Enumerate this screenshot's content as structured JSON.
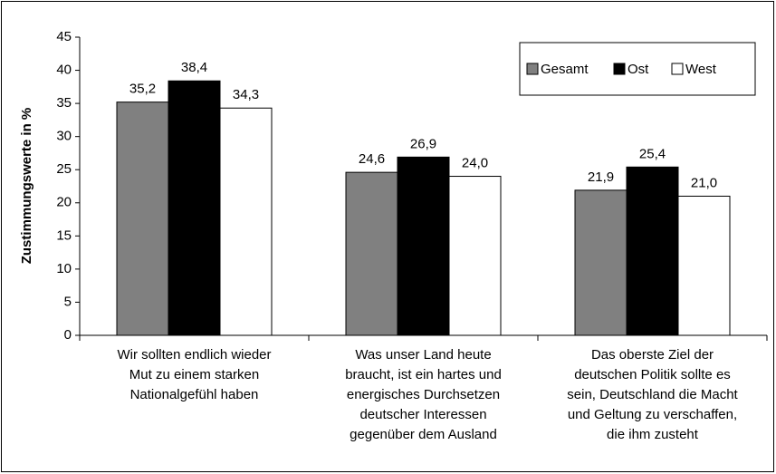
{
  "chart_data": {
    "type": "bar",
    "y_label": "Zustimmungswerte in %",
    "categories": [
      "Wir sollten endlich wieder\nMut zu einem starken\nNationalgefühl haben",
      "Was unser Land heute\nbraucht, ist ein hartes und\nenergisches Durchsetzen\ndeutscher Interessen\ngegenüber dem Ausland",
      "Das oberste Ziel der\ndeutschen Politik sollte es\nsein, Deutschland die Macht\nund Geltung zu verschaffen,\ndie ihm zusteht"
    ],
    "series": [
      {
        "name": "Gesamt",
        "color": "#808080",
        "values": [
          35.2,
          24.6,
          21.9
        ],
        "value_labels": [
          "35,2",
          "24,6",
          "21,9"
        ]
      },
      {
        "name": "Ost",
        "color": "#000000",
        "values": [
          38.4,
          26.9,
          25.4
        ],
        "value_labels": [
          "38,4",
          "26,9",
          "25,4"
        ]
      },
      {
        "name": "West",
        "color": "#ffffff",
        "values": [
          34.3,
          24.0,
          21.0
        ],
        "value_labels": [
          "34,3",
          "24,0",
          "21,0"
        ]
      }
    ],
    "ylim": [
      0,
      45
    ],
    "yticks": [
      0,
      5,
      10,
      15,
      20,
      25,
      30,
      35,
      40,
      45
    ],
    "legend": "top-right"
  }
}
